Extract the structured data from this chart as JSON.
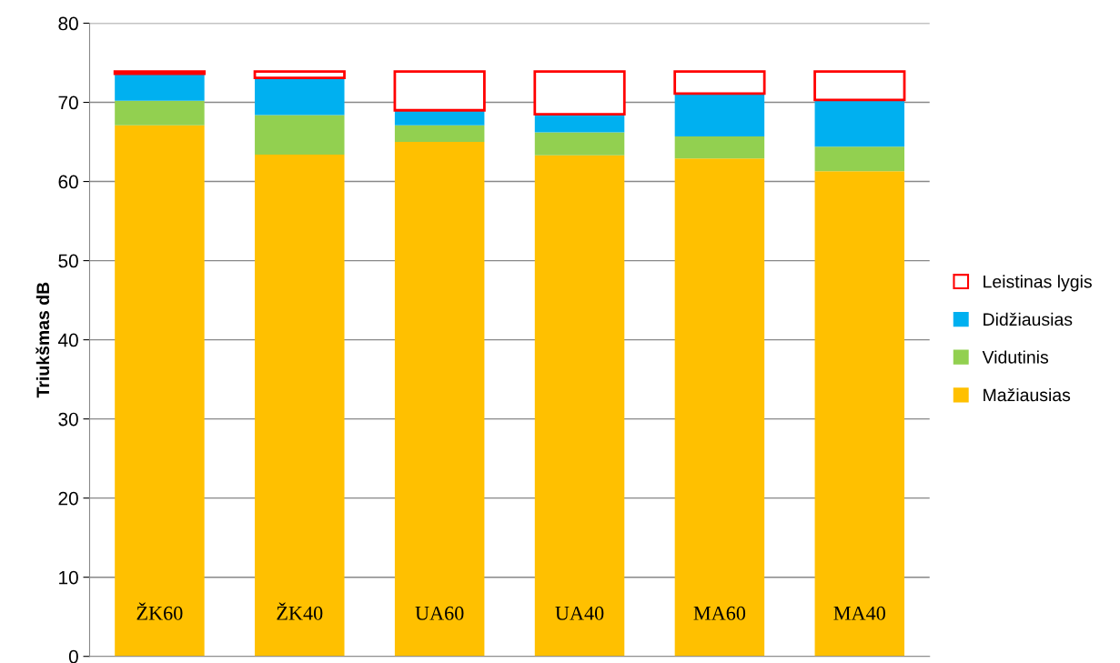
{
  "chart_data": {
    "type": "bar",
    "stacked": true,
    "ylabel": "Triukšmas dB",
    "categories": [
      "ŽK60",
      "ŽK40",
      "UA60",
      "UA40",
      "MA60",
      "MA40"
    ],
    "series": [
      {
        "name": "Mažiausias",
        "color": "#ffc000",
        "values": [
          67.1,
          63.4,
          65.0,
          63.3,
          62.9,
          61.3
        ]
      },
      {
        "name": "Vidutinis",
        "color": "#92d050",
        "values": [
          3.1,
          5.0,
          2.1,
          2.9,
          2.8,
          3.1
        ]
      },
      {
        "name": "Didžiausias",
        "color": "#00b0f0",
        "values": [
          3.4,
          4.7,
          1.9,
          2.3,
          5.4,
          5.9
        ]
      },
      {
        "name": "Leistinas lygis",
        "color": "#ff0000",
        "values": [
          0.3,
          0.8,
          4.9,
          5.4,
          2.8,
          3.6
        ]
      }
    ],
    "ylim": [
      0,
      80
    ],
    "yticks": [
      0,
      10,
      20,
      30,
      40,
      50,
      60,
      70,
      80
    ],
    "grid": "y",
    "legend": "right"
  }
}
